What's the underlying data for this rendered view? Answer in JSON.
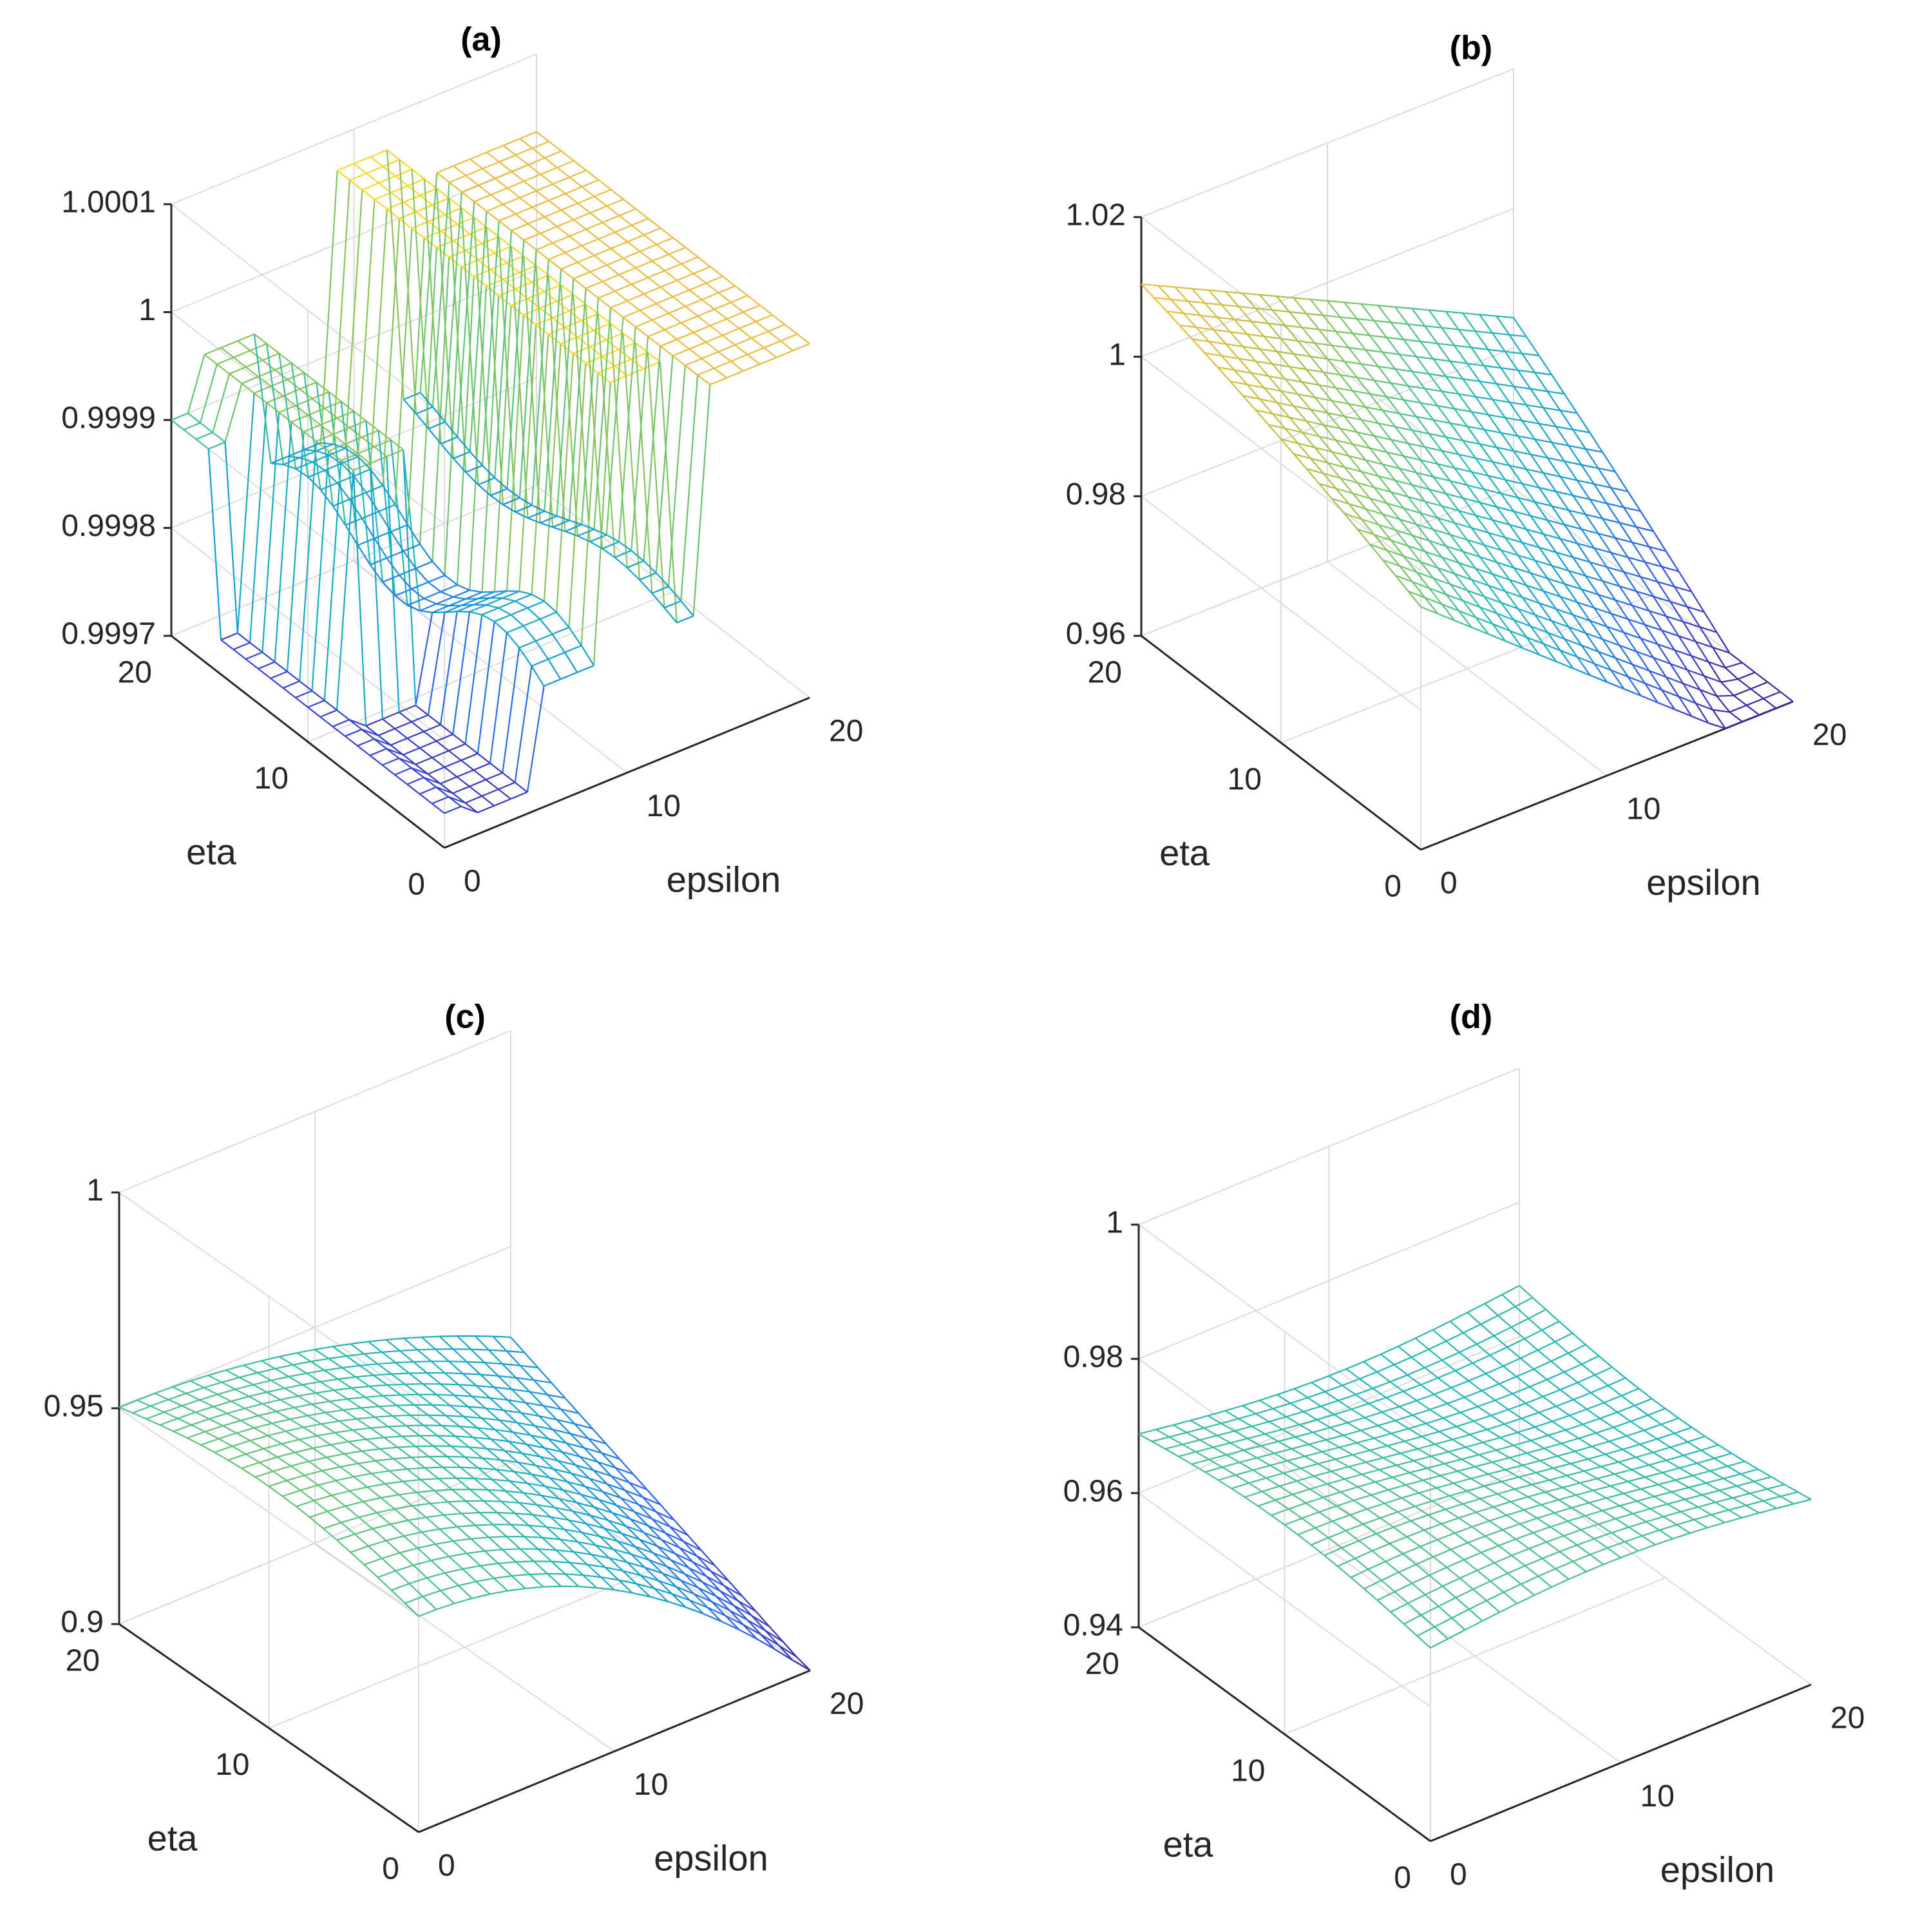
{
  "figure": {
    "colormap": [
      "#3e26a8",
      "#2e5cf3",
      "#119bd8",
      "#21b8b3",
      "#6bc66e",
      "#c3be3f",
      "#f9bb3f",
      "#f9fb14"
    ],
    "grid_color": "#dcdcdc",
    "axis_color": "#262626"
  },
  "chart_data": [
    {
      "type": "surface",
      "title": "(a)",
      "xlabel": "epsilon",
      "ylabel": "eta",
      "zlabel": "",
      "xlim": [
        0,
        20
      ],
      "ylim": [
        0,
        20
      ],
      "zlim": [
        0.9997,
        1.0001
      ],
      "xticks": [
        0,
        10,
        20
      ],
      "yticks": [
        0,
        10,
        20
      ],
      "zticks": [
        0.9997,
        0.9998,
        0.9999,
        1,
        1.0001
      ],
      "xtick_labels": [
        "0",
        "10",
        "20"
      ],
      "ytick_labels": [
        "0",
        "10",
        "20"
      ],
      "ztick_labels": [
        "0.9997",
        "0.9998",
        "0.9999",
        "1",
        "1.0001"
      ],
      "grid": true,
      "surface_model": "stepped_a"
    },
    {
      "type": "surface",
      "title": "(b)",
      "xlabel": "epsilon",
      "ylabel": "eta",
      "zlabel": "",
      "xlim": [
        0,
        20
      ],
      "ylim": [
        0,
        20
      ],
      "zlim": [
        0.96,
        1.02
      ],
      "xticks": [
        0,
        10,
        20
      ],
      "yticks": [
        0,
        10,
        20
      ],
      "zticks": [
        0.96,
        0.98,
        1,
        1.02
      ],
      "xtick_labels": [
        "0",
        "10",
        "20"
      ],
      "ytick_labels": [
        "0",
        "10",
        "20"
      ],
      "ztick_labels": [
        "0.96",
        "0.98",
        "1",
        "1.02"
      ],
      "grid": true,
      "surface_model": "sloped_b"
    },
    {
      "type": "surface",
      "title": "(c)",
      "xlabel": "epsilon",
      "ylabel": "eta",
      "zlabel": "",
      "xlim": [
        0,
        20
      ],
      "ylim": [
        0,
        20
      ],
      "zlim": [
        0.9,
        1
      ],
      "xticks": [
        0,
        10,
        20
      ],
      "yticks": [
        0,
        10,
        20
      ],
      "zticks": [
        0.9,
        0.95,
        1
      ],
      "xtick_labels": [
        "0",
        "10",
        "20"
      ],
      "ytick_labels": [
        "0",
        "10",
        "20"
      ],
      "ztick_labels": [
        "0.9",
        "0.95",
        "1"
      ],
      "grid": true,
      "surface_model": "curved_c"
    },
    {
      "type": "surface",
      "title": "(d)",
      "xlabel": "epsilon",
      "ylabel": "eta",
      "zlabel": "",
      "xlim": [
        0,
        20
      ],
      "ylim": [
        0,
        20
      ],
      "zlim": [
        0.94,
        1
      ],
      "xticks": [
        0,
        10,
        20
      ],
      "yticks": [
        0,
        10,
        20
      ],
      "zticks": [
        0.94,
        0.96,
        0.98,
        1
      ],
      "xtick_labels": [
        "0",
        "10",
        "20"
      ],
      "ytick_labels": [
        "0",
        "10",
        "20"
      ],
      "ztick_labels": [
        "0.94",
        "0.96",
        "0.98",
        "1"
      ],
      "grid": true,
      "surface_model": "flat_d"
    }
  ]
}
